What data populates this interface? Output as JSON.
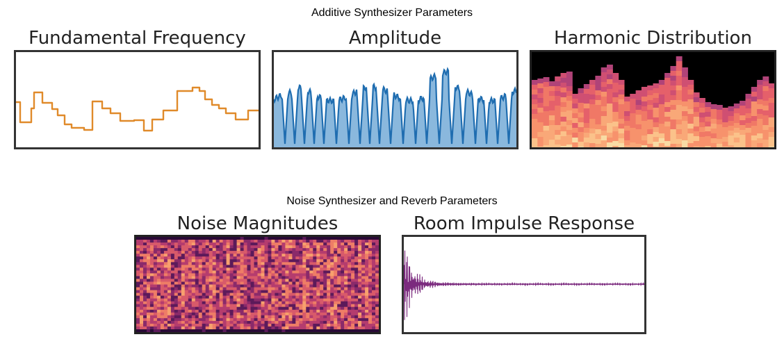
{
  "sections": {
    "additive_title": "Additive Synthesizer Parameters",
    "noise_title": "Noise Synthesizer and Reverb Parameters"
  },
  "panels": {
    "fundamental_frequency": {
      "title": "Fundamental Frequency",
      "color": "#e08a2a"
    },
    "amplitude": {
      "title": "Amplitude",
      "line_color": "#1f6db0",
      "fill_color": "#8ab8dd"
    },
    "harmonic_distribution": {
      "title": "Harmonic Distribution"
    },
    "noise_magnitudes": {
      "title": "Noise Magnitudes"
    },
    "room_impulse_response": {
      "title": "Room Impulse Response",
      "color": "#7b2a7e"
    }
  }
}
